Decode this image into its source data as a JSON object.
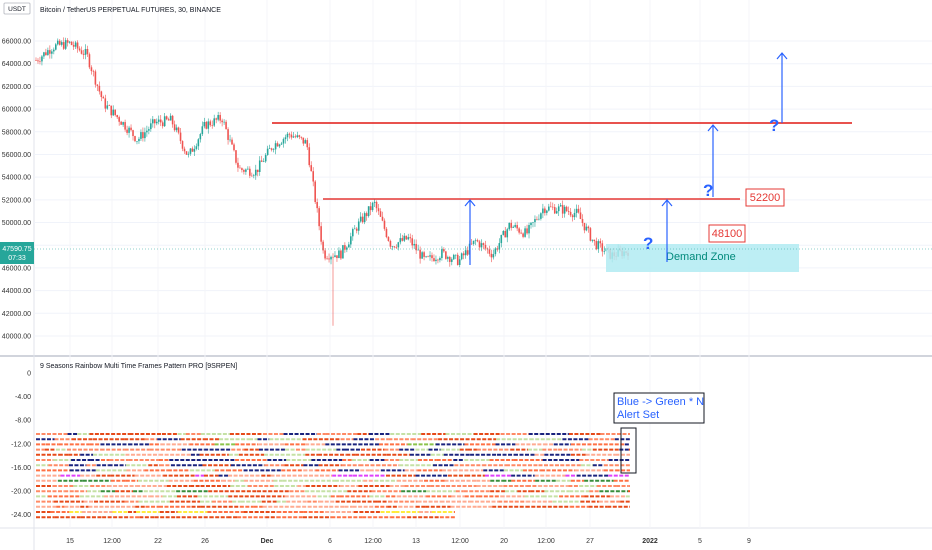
{
  "header": {
    "currency": "USDT",
    "symbol_title": "Bitcoin / TetherUS PERPETUAL FUTURES, 30, BINANCE"
  },
  "price_axis": {
    "ticks": [
      "66000.00",
      "64000.00",
      "62000.00",
      "60000.00",
      "58000.00",
      "56000.00",
      "54000.00",
      "52000.00",
      "50000.00",
      "48000.00",
      "46000.00",
      "44000.00",
      "42000.00",
      "40000.00"
    ],
    "current_price": "47590.75",
    "countdown": "07:33"
  },
  "indicator": {
    "title": "9 Seasons Rainbow Multi Time Frames Pattern PRO [9SRPEN]",
    "ticks": [
      "0",
      "-4.00",
      "-8.00",
      "-12.00",
      "-16.00",
      "-20.00",
      "-24.00"
    ]
  },
  "time_axis": {
    "labels": [
      "15",
      "12:00",
      "22",
      "26",
      "Dec",
      "6",
      "12:00",
      "13",
      "12:00",
      "20",
      "12:00",
      "27",
      "2022",
      "5",
      "9"
    ]
  },
  "annotations": {
    "level_high": "52200",
    "level_low": "48100",
    "demand_zone": "Demand Zone",
    "question_mark": "?",
    "alert_line1": "Blue -> Green * N",
    "alert_line2": "Alert Set"
  },
  "colors": {
    "up": "#26a69a",
    "down": "#ef5350",
    "level_line": "#e53935",
    "arrow": "#2962ff",
    "zone_fill": "#b2ebf2",
    "zone_text": "#00897b",
    "current_price_bg": "#26a69a"
  },
  "chart_data": {
    "type": "candlestick",
    "symbol": "Bitcoin / TetherUS PERPETUAL FUTURES",
    "timeframe": "30",
    "exchange": "BINANCE",
    "price_path": [
      64300,
      65500,
      65800,
      64800,
      60500,
      59000,
      57300,
      58800,
      59000,
      55800,
      58600,
      59200,
      54700,
      54500,
      56800,
      57800,
      57000,
      47200,
      47200,
      49700,
      51700,
      48000,
      48600,
      46600,
      47300,
      46600,
      48400,
      47200,
      49800,
      49000,
      51300,
      51200,
      50800,
      48200,
      47100,
      47500
    ],
    "ylim": [
      40000,
      66000
    ],
    "resistance_levels": [
      58700,
      52200
    ],
    "labeled_levels": [
      52200,
      48100
    ],
    "demand_zone": [
      45800,
      48100
    ],
    "last_price": 47590.75
  }
}
